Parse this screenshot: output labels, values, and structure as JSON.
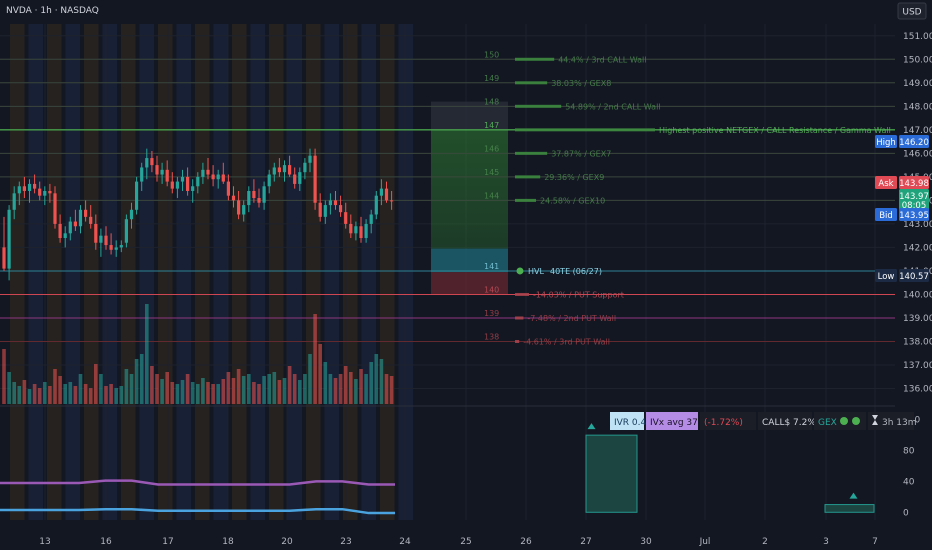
{
  "header": {
    "symbol_line": "NVDA · 1h · NASDAQ",
    "currency": "USD"
  },
  "chart_data": {
    "type": "candlestick",
    "symbol": "NVDA",
    "timeframe": "1h",
    "exchange": "NASDAQ",
    "y_axis": {
      "range": [
        135.3,
        151.5
      ],
      "ticks": [
        136,
        137,
        138,
        139,
        140,
        141,
        142,
        143,
        144,
        145,
        146,
        147,
        148,
        149,
        150,
        151
      ],
      "labels": [
        "136.00",
        "137.00",
        "138.00",
        "139.00",
        "140.00",
        "141.00",
        "142.00",
        "143.00",
        "144.00",
        "145.00",
        "146.00",
        "147.00",
        "148.00",
        "149.00",
        "150.00",
        "151.00"
      ]
    },
    "x_axis": {
      "labels": [
        "13",
        "16",
        "17",
        "18",
        "20",
        "23",
        "24",
        "25",
        "26",
        "27",
        "30",
        "Jul",
        "2",
        "3",
        "7"
      ]
    },
    "price_tags": [
      {
        "name": "High",
        "value": "146.20",
        "color": "#2a6bd8"
      },
      {
        "name": "Ask",
        "value": "143.98",
        "color": "#e04a55"
      },
      {
        "name": "",
        "value": "143.97",
        "sub": "08:05",
        "color": "#1fa37a"
      },
      {
        "name": "Bid",
        "value": "143.95",
        "color": "#2a6bd8"
      },
      {
        "name": "Low",
        "value": "140.57",
        "color": "#1c2a44"
      }
    ],
    "gex_levels": [
      {
        "strike": 150,
        "strike_label": "150",
        "text": "44.4% / 3rd CALL Wall",
        "bar": 0.28,
        "kind": "call"
      },
      {
        "strike": 149,
        "strike_label": "149",
        "text": "38.03% / GEX8",
        "bar": 0.23,
        "kind": "call"
      },
      {
        "strike": 148,
        "strike_label": "148",
        "text": "54.89% / 2nd CALL Wall",
        "bar": 0.33,
        "kind": "call"
      },
      {
        "strike": 147,
        "strike_label": "147",
        "text": "Highest positive NETGEX / CALL Resistance / Gamma Wall",
        "bar": 1.0,
        "kind": "call"
      },
      {
        "strike": 146,
        "strike_label": "146",
        "text": "37.87% / GEX7",
        "bar": 0.23,
        "kind": "call"
      },
      {
        "strike": 145,
        "strike_label": "145",
        "text": "29.36% / GEX9",
        "bar": 0.18,
        "kind": "call"
      },
      {
        "strike": 144,
        "strike_label": "144",
        "text": "24.58% / GEX10",
        "bar": 0.15,
        "kind": "call"
      },
      {
        "strike": 141,
        "strike_label": "141",
        "text": "HVL",
        "text2": "40TE (06/27)",
        "bar": 0,
        "kind": "hvl"
      },
      {
        "strike": 140,
        "strike_label": "140",
        "text": "-14.03% / PUT Support",
        "bar": 0.1,
        "kind": "put"
      },
      {
        "strike": 139,
        "strike_label": "139",
        "text": "-7.48% / 2nd PUT Wall",
        "bar": 0.06,
        "kind": "put"
      },
      {
        "strike": 138,
        "strike_label": "138",
        "text": "-4.61% / 3rd PUT Wall",
        "bar": 0.03,
        "kind": "put"
      }
    ],
    "candles": [
      [
        142.0,
        143.3,
        141.0,
        141.1
      ],
      [
        141.1,
        143.8,
        140.6,
        143.6
      ],
      [
        143.6,
        144.6,
        143.2,
        144.3
      ],
      [
        144.3,
        144.8,
        143.8,
        144.6
      ],
      [
        144.6,
        145.0,
        144.1,
        144.4
      ],
      [
        144.4,
        144.9,
        143.9,
        144.7
      ],
      [
        144.7,
        145.1,
        144.3,
        144.5
      ],
      [
        144.5,
        144.8,
        144.0,
        144.2
      ],
      [
        144.2,
        144.6,
        143.8,
        144.4
      ],
      [
        144.4,
        144.7,
        143.9,
        144.3
      ],
      [
        144.3,
        144.6,
        142.8,
        143.0
      ],
      [
        143.0,
        143.4,
        142.2,
        142.4
      ],
      [
        142.4,
        142.9,
        142.0,
        142.6
      ],
      [
        142.6,
        143.3,
        142.3,
        143.1
      ],
      [
        143.1,
        143.6,
        142.7,
        142.9
      ],
      [
        142.9,
        143.8,
        142.6,
        143.6
      ],
      [
        143.6,
        144.0,
        143.1,
        143.3
      ],
      [
        143.3,
        143.8,
        142.8,
        143.0
      ],
      [
        143.0,
        143.4,
        141.9,
        142.2
      ],
      [
        142.2,
        142.8,
        141.6,
        142.5
      ],
      [
        142.5,
        142.9,
        141.9,
        142.1
      ],
      [
        142.1,
        142.6,
        141.7,
        141.9
      ],
      [
        141.9,
        142.3,
        141.6,
        142.0
      ],
      [
        142.0,
        142.3,
        141.8,
        142.1
      ],
      [
        142.2,
        143.4,
        142.0,
        143.2
      ],
      [
        143.2,
        143.9,
        142.8,
        143.6
      ],
      [
        143.6,
        145.0,
        143.4,
        144.8
      ],
      [
        144.8,
        145.6,
        144.4,
        145.4
      ],
      [
        145.4,
        146.2,
        144.9,
        145.8
      ],
      [
        145.8,
        146.1,
        145.2,
        145.5
      ],
      [
        145.5,
        145.9,
        144.8,
        145.1
      ],
      [
        145.1,
        145.6,
        144.7,
        145.3
      ],
      [
        145.3,
        145.7,
        144.6,
        144.8
      ],
      [
        144.8,
        145.2,
        144.3,
        144.5
      ],
      [
        144.5,
        145.0,
        144.1,
        144.8
      ],
      [
        144.8,
        145.3,
        144.4,
        145.0
      ],
      [
        145.0,
        145.4,
        144.2,
        144.4
      ],
      [
        144.4,
        144.9,
        143.9,
        144.6
      ],
      [
        144.6,
        145.2,
        144.3,
        145.0
      ],
      [
        145.0,
        145.6,
        144.7,
        145.3
      ],
      [
        145.3,
        145.8,
        144.9,
        145.1
      ],
      [
        145.1,
        145.5,
        144.6,
        144.9
      ],
      [
        144.9,
        145.3,
        144.5,
        145.1
      ],
      [
        145.1,
        145.6,
        144.7,
        144.8
      ],
      [
        144.8,
        145.1,
        144.0,
        144.2
      ],
      [
        144.2,
        144.6,
        143.7,
        144.0
      ],
      [
        144.0,
        144.4,
        143.2,
        143.4
      ],
      [
        143.4,
        144.0,
        143.1,
        143.8
      ],
      [
        143.8,
        144.6,
        143.5,
        144.4
      ],
      [
        144.4,
        144.9,
        143.9,
        144.1
      ],
      [
        144.1,
        144.5,
        143.7,
        143.9
      ],
      [
        143.9,
        144.8,
        143.6,
        144.6
      ],
      [
        144.6,
        145.3,
        144.3,
        145.1
      ],
      [
        145.1,
        145.6,
        144.8,
        145.4
      ],
      [
        145.4,
        145.8,
        145.0,
        145.2
      ],
      [
        145.2,
        145.7,
        144.8,
        145.5
      ],
      [
        145.5,
        145.9,
        145.0,
        145.1
      ],
      [
        145.1,
        145.4,
        144.5,
        144.7
      ],
      [
        144.7,
        145.4,
        144.4,
        145.2
      ],
      [
        145.2,
        145.8,
        144.9,
        145.6
      ],
      [
        145.6,
        146.2,
        145.2,
        145.9
      ],
      [
        145.9,
        146.2,
        143.6,
        143.9
      ],
      [
        143.9,
        144.3,
        143.1,
        143.3
      ],
      [
        143.3,
        144.0,
        143.0,
        143.8
      ],
      [
        143.8,
        144.3,
        143.4,
        144.0
      ],
      [
        144.0,
        144.4,
        143.6,
        143.8
      ],
      [
        143.8,
        144.2,
        143.3,
        143.5
      ],
      [
        143.5,
        143.9,
        142.8,
        143.0
      ],
      [
        143.0,
        143.4,
        142.4,
        142.6
      ],
      [
        142.6,
        143.1,
        142.3,
        142.9
      ],
      [
        142.9,
        143.3,
        142.2,
        142.4
      ],
      [
        142.4,
        143.2,
        142.2,
        143.0
      ],
      [
        143.0,
        143.6,
        142.6,
        143.4
      ],
      [
        143.4,
        144.4,
        143.2,
        144.2
      ],
      [
        144.2,
        144.9,
        143.8,
        144.5
      ],
      [
        144.5,
        144.8,
        143.9,
        144.0
      ],
      [
        144.0,
        144.4,
        143.6,
        143.97
      ]
    ],
    "volume": [
      0.55,
      0.32,
      0.22,
      0.18,
      0.24,
      0.15,
      0.2,
      0.16,
      0.22,
      0.18,
      0.35,
      0.28,
      0.2,
      0.22,
      0.18,
      0.3,
      0.2,
      0.16,
      0.4,
      0.3,
      0.18,
      0.2,
      0.16,
      0.18,
      0.35,
      0.3,
      0.45,
      0.5,
      1.0,
      0.38,
      0.3,
      0.25,
      0.32,
      0.22,
      0.2,
      0.24,
      0.3,
      0.22,
      0.2,
      0.26,
      0.22,
      0.2,
      0.2,
      0.25,
      0.32,
      0.26,
      0.35,
      0.28,
      0.3,
      0.22,
      0.2,
      0.28,
      0.3,
      0.32,
      0.24,
      0.26,
      0.38,
      0.3,
      0.24,
      0.3,
      0.5,
      0.9,
      0.6,
      0.42,
      0.3,
      0.26,
      0.3,
      0.38,
      0.32,
      0.25,
      0.35,
      0.3,
      0.42,
      0.5,
      0.45,
      0.3,
      0.28
    ],
    "indicator_bar": [
      {
        "label": "IVR",
        "value": "0.4",
        "bg": "#bfe3f5",
        "fg": "#163a5a"
      },
      {
        "label": "IVx avg",
        "value": "37.4",
        "bg": "#b48ce6",
        "fg": "#1a1026"
      },
      {
        "label": "(-1.72%)",
        "value": "",
        "bg": "#1b1e27",
        "fg": "#e04a55"
      },
      {
        "label": "CALL$",
        "value": "7.2%",
        "bg": "#1b1e27",
        "fg": "#d1d4dc"
      },
      {
        "label": "GEX",
        "value": "",
        "bg": "#1b1e27",
        "fg": "#26a69a"
      },
      {
        "label": "3h 13m",
        "value": "",
        "bg": "#1b1e27",
        "fg": "#b2b5be"
      }
    ],
    "lower_axis": {
      "range": [
        -10,
        130
      ],
      "ticks": [
        0,
        40,
        80,
        120
      ],
      "labels": [
        "0",
        "40",
        "80",
        "120"
      ]
    },
    "lower_series": [
      {
        "color": "#9b59b6",
        "values": [
          38,
          38,
          38,
          38,
          41,
          41,
          36,
          36,
          36,
          36,
          36,
          36,
          40,
          40,
          36,
          36
        ]
      },
      {
        "color": "#4aa3df",
        "values": [
          3,
          3,
          3,
          3,
          4,
          4,
          2,
          2,
          2,
          2,
          2,
          2,
          4,
          4,
          -1,
          -1
        ]
      }
    ],
    "lower_boxes": [
      {
        "x": "27",
        "value": 100
      },
      {
        "x": "3",
        "value": 10
      }
    ]
  }
}
